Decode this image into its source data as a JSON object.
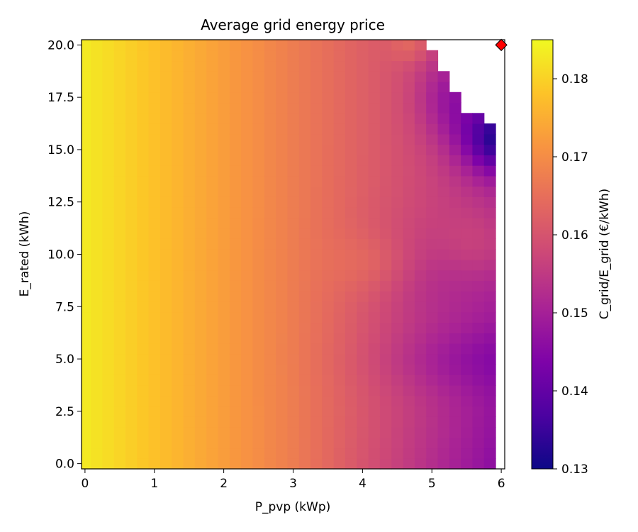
{
  "chart_data": {
    "type": "heatmap",
    "title": "Average grid energy price",
    "xlabel": "P_pvp (kWp)",
    "ylabel": "E_rated (kWh)",
    "xlim": [
      -0.05,
      6.05
    ],
    "ylim": [
      -0.25,
      20.25
    ],
    "x_ticks": [
      "0",
      "1",
      "2",
      "3",
      "4",
      "5",
      "6"
    ],
    "y_ticks": [
      "0.0",
      "2.5",
      "5.0",
      "7.5",
      "10.0",
      "12.5",
      "15.0",
      "17.5",
      "20.0"
    ],
    "x_step": 0.1667,
    "y_step": 0.5,
    "colormap": "plasma",
    "colorbar": {
      "label": "C_grid/E_grid (€/kWh)",
      "vmin": 0.13,
      "vmax": 0.185,
      "ticks": [
        "0.13",
        "0.14",
        "0.15",
        "0.16",
        "0.17",
        "0.18"
      ]
    },
    "marker": {
      "x": 6.0,
      "y": 20.0,
      "shape": "diamond",
      "color": "#ff0000"
    },
    "invalid_region": "upper-right corner (white, no data)",
    "grid": false
  }
}
